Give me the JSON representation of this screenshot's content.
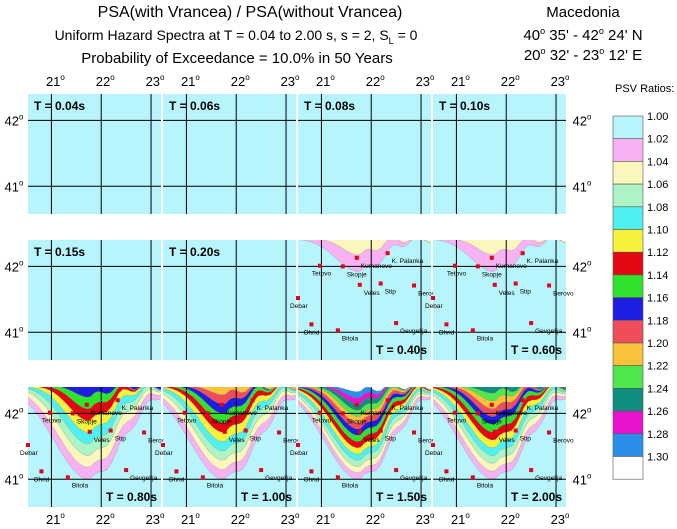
{
  "header": {
    "title_line1": "PSA(with Vrancea) / PSA(without Vrancea)",
    "title_line2_pre": "Uniform Hazard Spectra at  T = 0.04 to 2.00 s,  s = 2,  S",
    "title_line2_sub": "L",
    "title_line2_post": " = 0",
    "title_line3": "Probability of Exceedance = 10.0% in 50 Years"
  },
  "region": {
    "name": "Macedonia",
    "lat_a": "40",
    "lat_a_min": " 35' - 42",
    "lat_b_min": " 24' N",
    "lon_a": "20",
    "lon_a_min": " 32' - 23",
    "lon_b_min": " 12' E",
    "deg": "o"
  },
  "axes": {
    "x_ticks": [
      "21",
      "22",
      "23"
    ],
    "y_ticks": [
      "42",
      "41"
    ],
    "deg": "o"
  },
  "legend": {
    "title": "PSV Ratios:",
    "levels": [
      {
        "label": "1.00",
        "color": "#b8f4fb"
      },
      {
        "label": "1.02",
        "color": "#f7b2f3"
      },
      {
        "label": "1.04",
        "color": "#fbf7bc"
      },
      {
        "label": "1.06",
        "color": "#acf3c5"
      },
      {
        "label": "1.08",
        "color": "#4ff0ef"
      },
      {
        "label": "1.10",
        "color": "#f6f23c"
      },
      {
        "label": "1.12",
        "color": "#e30613"
      },
      {
        "label": "1.14",
        "color": "#2fe32c"
      },
      {
        "label": "1.16",
        "color": "#1d1ee0"
      },
      {
        "label": "1.18",
        "color": "#f04d5a"
      },
      {
        "label": "1.20",
        "color": "#f8c23a"
      },
      {
        "label": "1.22",
        "color": "#4ee74c"
      },
      {
        "label": "1.24",
        "color": "#0f8e7f"
      },
      {
        "label": "1.26",
        "color": "#e813cf"
      },
      {
        "label": "1.28",
        "color": "#2a8fe8"
      },
      {
        "label": "1.30",
        "color": "#ffffff"
      }
    ]
  },
  "chart_data": {
    "type": "heatmap",
    "title": "PSA(with Vrancea) / PSA(without Vrancea)",
    "subtitle": "Uniform Hazard Spectra at T = 0.04 to 2.00 s, s = 2, SL = 0; Probability of Exceedance = 10.0% in 50 Years",
    "xlim": [
      20.53,
      23.2
    ],
    "ylim": [
      40.58,
      42.4
    ],
    "x_ticks": [
      21,
      22,
      23
    ],
    "y_ticks": [
      41,
      42
    ],
    "panels": [
      {
        "period": "T = 0.04s",
        "max_ratio": 1.0,
        "cities_shown": false,
        "label_pos": "top-left"
      },
      {
        "period": "T = 0.06s",
        "max_ratio": 1.0,
        "cities_shown": false,
        "label_pos": "top-left"
      },
      {
        "period": "T = 0.08s",
        "max_ratio": 1.0,
        "cities_shown": false,
        "label_pos": "top-left"
      },
      {
        "period": "T = 0.10s",
        "max_ratio": 1.0,
        "cities_shown": false,
        "label_pos": "top-left"
      },
      {
        "period": "T = 0.15s",
        "max_ratio": 1.0,
        "cities_shown": false,
        "label_pos": "top-left"
      },
      {
        "period": "T = 0.20s",
        "max_ratio": 1.0,
        "cities_shown": false,
        "label_pos": "top-left"
      },
      {
        "period": "T = 0.40s",
        "max_ratio": 1.04,
        "cities_shown": true,
        "label_pos": "bottom-right"
      },
      {
        "period": "T = 0.60s",
        "max_ratio": 1.04,
        "cities_shown": true,
        "label_pos": "bottom-right"
      },
      {
        "period": "T = 0.80s",
        "max_ratio": 1.16,
        "cities_shown": true,
        "label_pos": "bottom-right"
      },
      {
        "period": "T = 1.00s",
        "max_ratio": 1.2,
        "cities_shown": true,
        "label_pos": "bottom-right"
      },
      {
        "period": "T = 1.50s",
        "max_ratio": 1.3,
        "cities_shown": true,
        "label_pos": "bottom-right"
      },
      {
        "period": "T = 2.00s",
        "max_ratio": 1.24,
        "cities_shown": true,
        "label_pos": "bottom-right"
      }
    ],
    "cities": [
      {
        "name": "K. Palanka",
        "lon": 22.33,
        "lat": 42.2
      },
      {
        "name": "Kumanovo",
        "lon": 21.71,
        "lat": 42.13
      },
      {
        "name": "Skopje",
        "lon": 21.43,
        "lat": 42.0
      },
      {
        "name": "Tetovo",
        "lon": 20.97,
        "lat": 42.01
      },
      {
        "name": "Veles",
        "lon": 21.77,
        "lat": 41.72
      },
      {
        "name": "Stip",
        "lon": 22.19,
        "lat": 41.74
      },
      {
        "name": "Berovo",
        "lon": 22.86,
        "lat": 41.71
      },
      {
        "name": "Debar",
        "lon": 20.53,
        "lat": 41.52
      },
      {
        "name": "Ohrid",
        "lon": 20.8,
        "lat": 41.12
      },
      {
        "name": "Bitola",
        "lon": 21.33,
        "lat": 41.03
      },
      {
        "name": "Gevgelija",
        "lon": 22.5,
        "lat": 41.14
      }
    ]
  }
}
